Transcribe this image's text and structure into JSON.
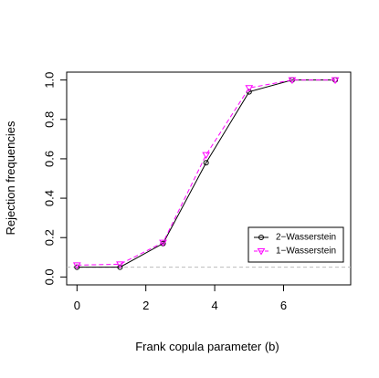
{
  "chart_data": {
    "type": "line",
    "xlabel": "Frank copula parameter (b)",
    "ylabel": "Rejection frequencies",
    "x": [
      0,
      1.25,
      2.5,
      3.75,
      5,
      6.25,
      7.5
    ],
    "series": [
      {
        "name": "2−Wasserstein",
        "color": "#000000",
        "marker": "circle",
        "dash": "solid",
        "values": [
          0.05,
          0.05,
          0.17,
          0.58,
          0.94,
          1.0,
          1.0
        ]
      },
      {
        "name": "1−Wasserstein",
        "color": "#ff00ff",
        "marker": "triangle-down",
        "dash": "dashed",
        "values": [
          0.06,
          0.065,
          0.175,
          0.62,
          0.96,
          1.0,
          1.0
        ]
      }
    ],
    "hline": 0.05,
    "xlim": [
      -0.3,
      7.95
    ],
    "ylim": [
      -0.04,
      1.04
    ],
    "xticks": [
      0,
      2,
      4,
      6
    ],
    "yticks": [
      {
        "value": 0,
        "label": "0.0"
      },
      {
        "value": 0.2,
        "label": "0.2"
      },
      {
        "value": 0.4,
        "label": "0.4"
      },
      {
        "value": 0.6,
        "label": "0.6"
      },
      {
        "value": 0.8,
        "label": "0.8"
      },
      {
        "value": 1,
        "label": "1.0"
      }
    ],
    "legend": "bottom-right"
  }
}
